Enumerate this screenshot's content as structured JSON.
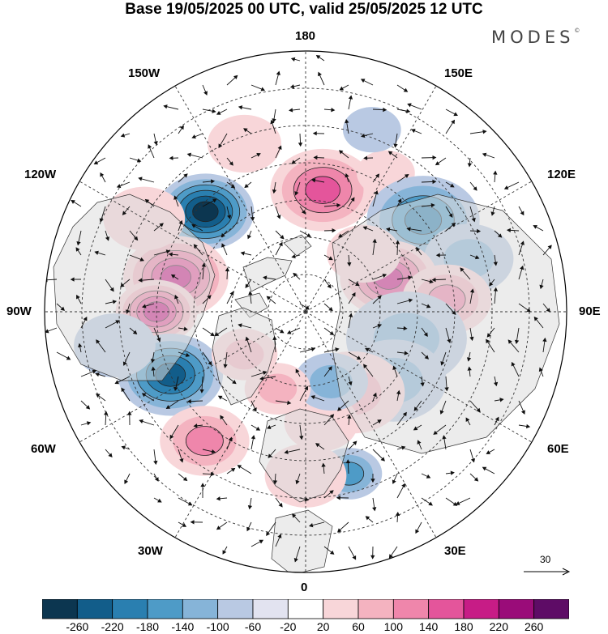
{
  "title": "Base 19/05/2025 00 UTC, valid 25/05/2025 12 UTC",
  "brand": {
    "name": "MODES",
    "mark": "©"
  },
  "longitude_labels": {
    "lon_180": "180",
    "lon_150W": "150W",
    "lon_150E": "150E",
    "lon_120W": "120W",
    "lon_120E": "120E",
    "lon_90W": "90W",
    "lon_90E": "90E",
    "lon_60W": "60W",
    "lon_60E": "60E",
    "lon_30W": "30W",
    "lon_30E": "30E",
    "lon_0": "0"
  },
  "vector_scale": {
    "label": "30"
  },
  "colorbar": {
    "ticks": [
      "-260",
      "-220",
      "-180",
      "-140",
      "-100",
      "-60",
      "-20",
      "20",
      "60",
      "100",
      "140",
      "180",
      "220",
      "260"
    ],
    "colors": [
      "#0c3650",
      "#125d8a",
      "#2a7fb0",
      "#4e9bc7",
      "#86b4d8",
      "#b9c9e3",
      "#e2e3f0",
      "#ffffff",
      "#f8d6d9",
      "#f4b3c0",
      "#ef86ab",
      "#e4559b",
      "#c71c86",
      "#9a0c79",
      "#5e0c66"
    ]
  },
  "anomalies": [
    {
      "lon": -135,
      "colat": 38,
      "value": -240,
      "spread": 11
    },
    {
      "lon": -105,
      "colat": 36,
      "value": 215,
      "spread": 12
    },
    {
      "lon": -90,
      "colat": 40,
      "value": 200,
      "spread": 9
    },
    {
      "lon": -65,
      "colat": 40,
      "value": -220,
      "spread": 12
    },
    {
      "lon": -38,
      "colat": 44,
      "value": 130,
      "spread": 10
    },
    {
      "lon": 172,
      "colat": 33,
      "value": 190,
      "spread": 12
    },
    {
      "lon": 150,
      "colat": 43,
      "value": 40,
      "spread": 6
    },
    {
      "lon": 128,
      "colat": 40,
      "value": -170,
      "spread": 13
    },
    {
      "lon": 108,
      "colat": 46,
      "value": -110,
      "spread": 10
    },
    {
      "lon": 112,
      "colat": 24,
      "value": 200,
      "spread": 11
    },
    {
      "lon": 95,
      "colat": 38,
      "value": 140,
      "spread": 10
    },
    {
      "lon": 75,
      "colat": 28,
      "value": -80,
      "spread": 14
    },
    {
      "lon": 52,
      "colat": 30,
      "value": -90,
      "spread": 12
    },
    {
      "lon": 30,
      "colat": 25,
      "value": 95,
      "spread": 12
    },
    {
      "lon": 15,
      "colat": 45,
      "value": -150,
      "spread": 7
    },
    {
      "lon": 8,
      "colat": 30,
      "value": 70,
      "spread": 8
    },
    {
      "lon": 20,
      "colat": 20,
      "value": -80,
      "spread": 8
    },
    {
      "lon": -20,
      "colat": 22,
      "value": 80,
      "spread": 7
    },
    {
      "lon": -55,
      "colat": 20,
      "value": 85,
      "spread": 7
    },
    {
      "lon": 0,
      "colat": 44,
      "value": 70,
      "spread": 9
    },
    {
      "lon": -160,
      "colat": 48,
      "value": 75,
      "spread": 8
    },
    {
      "lon": -120,
      "colat": 50,
      "value": 50,
      "spread": 9
    },
    {
      "lon": 160,
      "colat": 52,
      "value": -60,
      "spread": 6
    },
    {
      "lon": -80,
      "colat": 52,
      "value": -70,
      "spread": 9
    },
    {
      "lon": 135,
      "colat": 22,
      "value": 40,
      "spread": 8
    }
  ]
}
